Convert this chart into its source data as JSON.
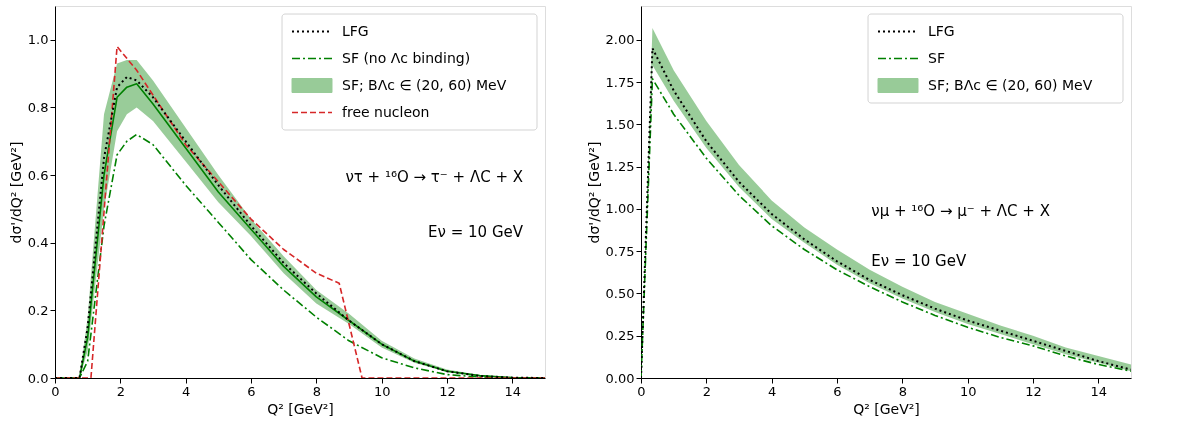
{
  "chart_data": [
    {
      "type": "line",
      "xlabel": "Q² [GeV²]",
      "ylabel": "dσ'/dQ² [GeV²]",
      "xlim": [
        0,
        15
      ],
      "ylim": [
        0,
        1.1
      ],
      "xticks": [
        0,
        2,
        4,
        6,
        8,
        10,
        12,
        14
      ],
      "yticks": [
        {
          "value": 0,
          "label": "0.0"
        },
        {
          "value": 0.2,
          "label": "0.2"
        },
        {
          "value": 0.4,
          "label": "0.4"
        },
        {
          "value": 0.6,
          "label": "0.6"
        },
        {
          "value": 0.8,
          "label": "0.8"
        },
        {
          "value": 1,
          "label": "1.0"
        }
      ],
      "x": [
        0,
        0.75,
        1,
        1.5,
        1.9,
        2.2,
        2.5,
        3,
        4,
        5,
        6,
        7,
        8,
        9,
        10,
        11,
        12,
        13,
        14,
        15
      ],
      "grid": false,
      "legend": "top right",
      "annotations": [
        "ντ + ¹⁶O → τ⁻ + ΛC + X",
        "Eν = 10 GeV"
      ],
      "series": [
        {
          "name": "LFG",
          "color": "#000000",
          "line_style": "dotted",
          "values": [
            0,
            0,
            0.15,
            0.65,
            0.86,
            0.89,
            0.88,
            0.83,
            0.7,
            0.57,
            0.45,
            0.34,
            0.25,
            0.17,
            0.1,
            0.05,
            0.02,
            0.006,
            0.001,
            0
          ]
        },
        {
          "name": "SF (no Λc binding)",
          "color": "#008000",
          "line_style": "dashdot",
          "values": [
            0,
            0,
            0.05,
            0.45,
            0.66,
            0.7,
            0.72,
            0.69,
            0.57,
            0.46,
            0.35,
            0.26,
            0.18,
            0.11,
            0.06,
            0.03,
            0.01,
            0.003,
            0,
            0
          ]
        },
        {
          "name": "SF; BΛc ∈ (20, 60) MeV",
          "color": "#008000",
          "line_style": "solid",
          "values": [
            0,
            0,
            0.12,
            0.6,
            0.83,
            0.86,
            0.87,
            0.81,
            0.68,
            0.55,
            0.44,
            0.33,
            0.24,
            0.17,
            0.1,
            0.05,
            0.02,
            0.007,
            0.001,
            0
          ],
          "lower": [
            0,
            0,
            0.08,
            0.5,
            0.73,
            0.78,
            0.8,
            0.76,
            0.64,
            0.52,
            0.42,
            0.31,
            0.22,
            0.16,
            0.09,
            0.045,
            0.018,
            0.005,
            0.001,
            0
          ],
          "upper": [
            0,
            0,
            0.18,
            0.78,
            0.93,
            0.94,
            0.94,
            0.88,
            0.74,
            0.6,
            0.47,
            0.36,
            0.26,
            0.19,
            0.11,
            0.058,
            0.025,
            0.009,
            0.002,
            0
          ]
        },
        {
          "name": "free nucleon",
          "color": "#d62728",
          "line_style": "dashed",
          "x": [
            0,
            1.1,
            1.9,
            2.5,
            4,
            6,
            7,
            8,
            8.7,
            9.4,
            15
          ],
          "values": [
            0,
            0,
            0.98,
            0.91,
            0.69,
            0.47,
            0.38,
            0.31,
            0.28,
            0,
            0
          ]
        }
      ]
    },
    {
      "type": "line",
      "xlabel": "Q² [GeV²]",
      "ylabel": "dσ'/dQ² [GeV²]",
      "xlim": [
        0,
        15
      ],
      "ylim": [
        0,
        2.2
      ],
      "xticks": [
        0,
        2,
        4,
        6,
        8,
        10,
        12,
        14
      ],
      "yticks": [
        {
          "value": 0,
          "label": "0.00"
        },
        {
          "value": 0.25,
          "label": "0.25"
        },
        {
          "value": 0.5,
          "label": "0.50"
        },
        {
          "value": 0.75,
          "label": "0.75"
        },
        {
          "value": 1,
          "label": "1.00"
        },
        {
          "value": 1.25,
          "label": "1.25"
        },
        {
          "value": 1.5,
          "label": "1.50"
        },
        {
          "value": 1.75,
          "label": "1.75"
        },
        {
          "value": 2,
          "label": "2.00"
        }
      ],
      "x": [
        0,
        0.35,
        1,
        2,
        3,
        4,
        5,
        6,
        7,
        8,
        9,
        10,
        11,
        12,
        13,
        14,
        15
      ],
      "grid": false,
      "legend": "top right",
      "annotations": [
        "νμ + ¹⁶O → μ⁻ + ΛC + X",
        "Eν = 10 GeV"
      ],
      "series": [
        {
          "name": "LFG",
          "color": "#000000",
          "line_style": "dotted",
          "values": [
            0,
            1.95,
            1.7,
            1.4,
            1.16,
            0.97,
            0.82,
            0.69,
            0.58,
            0.49,
            0.41,
            0.34,
            0.28,
            0.22,
            0.16,
            0.1,
            0.05
          ]
        },
        {
          "name": "SF",
          "color": "#008000",
          "line_style": "dashdot",
          "values": [
            0,
            1.77,
            1.56,
            1.3,
            1.08,
            0.9,
            0.76,
            0.64,
            0.54,
            0.45,
            0.37,
            0.3,
            0.24,
            0.19,
            0.13,
            0.08,
            0.04
          ]
        },
        {
          "name": "SF; BΛc ∈ (20, 60) MeV",
          "type": "area",
          "color": "#008000",
          "values": [
            null,
            null,
            null,
            null,
            null,
            null,
            null,
            null,
            null,
            null,
            null,
            null,
            null,
            null,
            null,
            null,
            null
          ],
          "lower": [
            0,
            1.85,
            1.64,
            1.36,
            1.13,
            0.94,
            0.8,
            0.67,
            0.56,
            0.47,
            0.39,
            0.32,
            0.26,
            0.2,
            0.14,
            0.09,
            0.04
          ],
          "upper": [
            0,
            2.07,
            1.82,
            1.52,
            1.26,
            1.05,
            0.89,
            0.76,
            0.64,
            0.54,
            0.45,
            0.38,
            0.31,
            0.25,
            0.18,
            0.13,
            0.08
          ]
        }
      ]
    }
  ]
}
